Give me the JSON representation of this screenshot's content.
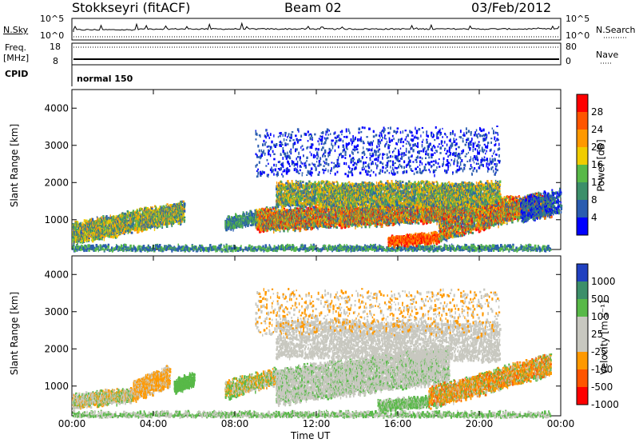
{
  "header": {
    "site": "Stokkseyri (fitACF)",
    "beam": "Beam 02",
    "date": "03/Feb/2012"
  },
  "panels": {
    "nsky_label": "N.Sky",
    "nsearch_label": "N.Search",
    "nsky_ticks": [
      "10^5",
      "10^0"
    ],
    "nsearch_ticks": [
      "10^5",
      "10^0"
    ],
    "freq_label_1": "Freq.",
    "freq_label_2": "[MHz]",
    "freq_ticks": [
      "18",
      "8"
    ],
    "nave_label": "Nave",
    "nave_ticks": [
      "80",
      "0"
    ],
    "cpid_label": "CPID",
    "cpid_value": "normal 150"
  },
  "chart_data": [
    {
      "type": "heatmap",
      "title": "",
      "xlabel": "",
      "ylabel": "Slant Range [km]",
      "ylim": [
        200,
        4500
      ],
      "y_ticks": [
        "1000",
        "2000",
        "3000",
        "4000"
      ],
      "colorbar_label": "Power [dB]",
      "colorbar_ticks": [
        "28",
        "24",
        "20",
        "16",
        "12",
        "8",
        "4"
      ],
      "colorbar_colors": [
        "#ff0000",
        "#ff5500",
        "#ff9900",
        "#f0cc00",
        "#58b948",
        "#3c8f6a",
        "#2a5cb0",
        "#0000ff"
      ],
      "features": [
        {
          "t0": 0.0,
          "t1": 5.5,
          "r0": 650,
          "r1": 1350,
          "level": "mid"
        },
        {
          "t0": 9.0,
          "t1": 23.5,
          "r0": 700,
          "r1": 2100,
          "level": "high"
        },
        {
          "t0": 15.5,
          "t1": 21.0,
          "r0": 400,
          "r1": 1100,
          "level": "high"
        }
      ]
    },
    {
      "type": "heatmap",
      "title": "",
      "xlabel": "Time UT",
      "ylabel": "Slant Range [km]",
      "ylim": [
        200,
        4500
      ],
      "y_ticks": [
        "1000",
        "2000",
        "3000",
        "4000"
      ],
      "x_ticks": [
        "00:00",
        "04:00",
        "08:00",
        "12:00",
        "16:00",
        "20:00",
        "00:00"
      ],
      "colorbar_label": "Velocity [m s⁻¹]",
      "colorbar_ticks": [
        "1000",
        "500",
        "100",
        "25",
        "-25",
        "-100",
        "-500",
        "-1000"
      ],
      "colorbar_colors": [
        "#2040c0",
        "#3c8f6a",
        "#58b948",
        "#c8c8c0",
        "#c8c8c0",
        "#ff9900",
        "#ff5500",
        "#ff0000"
      ]
    }
  ]
}
